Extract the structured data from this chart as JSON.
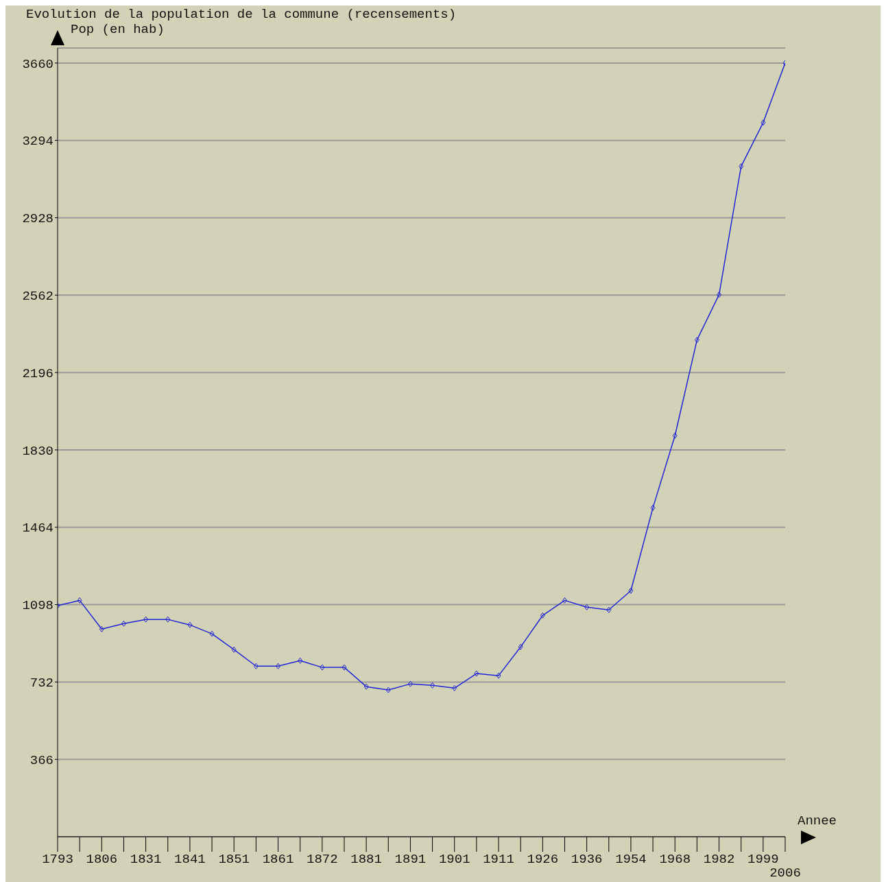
{
  "chart_data": {
    "type": "line",
    "title": "Evolution de la population de la commune (recensements)",
    "xlabel": "Annee",
    "ylabel": "Pop (en hab)",
    "categories": [
      "1793",
      null,
      "1806",
      null,
      "1831",
      null,
      "1841",
      null,
      "1851",
      null,
      "1861",
      null,
      "1872",
      null,
      "1881",
      null,
      "1891",
      null,
      "1901",
      null,
      "1911",
      null,
      "1926",
      null,
      "1936",
      null,
      "1954",
      null,
      "1968",
      null,
      "1982",
      null,
      "1999",
      "2006"
    ],
    "series": [
      {
        "color": "#2424d8",
        "values": [
          1093,
          1118,
          982,
          1008,
          1028,
          1028,
          1002,
          960,
          885,
          807,
          807,
          833,
          801,
          801,
          710,
          694,
          723,
          716,
          703,
          772,
          762,
          898,
          1047,
          1118,
          1086,
          1073,
          1164,
          1556,
          1897,
          2350,
          2564,
          3171,
          3378,
          3660
        ]
      }
    ],
    "ylim": [
      0,
      3731
    ],
    "yticks": [
      366,
      732,
      1098,
      1464,
      1830,
      2196,
      2562,
      2928,
      3294,
      3660
    ],
    "grid": "y",
    "legend": false,
    "marker": "diamond",
    "line_style": "solid"
  }
}
